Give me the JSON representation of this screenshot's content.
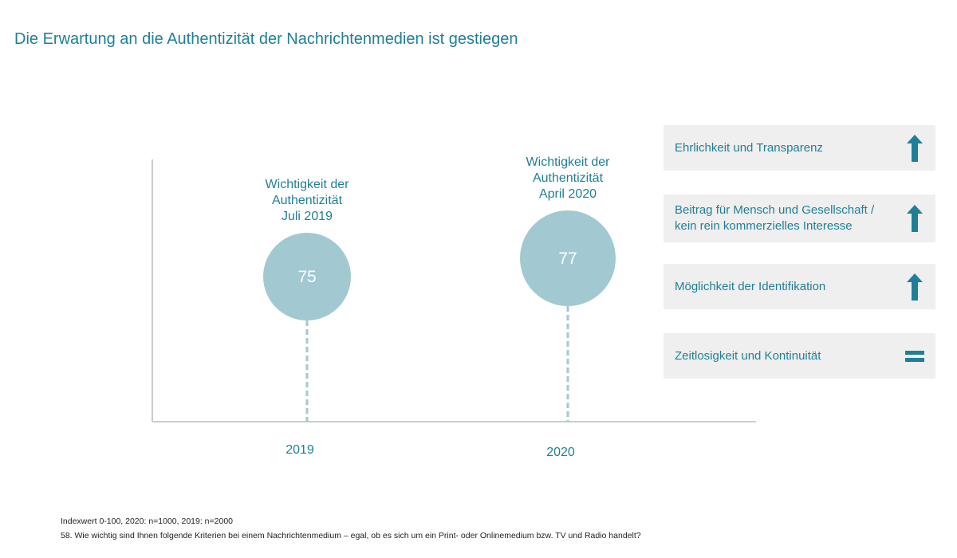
{
  "title": "Die Erwartung an die Authentizität der Nachrichtenmedien ist gestiegen",
  "chart_data": {
    "type": "bubble",
    "points": [
      {
        "year": "2019",
        "value": 75,
        "label_lines": [
          "Wichtigkeit der",
          "Authentizität",
          "Juli 2019"
        ]
      },
      {
        "year": "2020",
        "value": 77,
        "label_lines": [
          "Wichtigkeit der",
          "Authentizität",
          "April 2020"
        ]
      }
    ],
    "categories": [
      "2019",
      "2020"
    ],
    "scale_note": "Indexwert 0-100"
  },
  "criteria": [
    {
      "lines": [
        "Ehrlichkeit und Transparenz"
      ],
      "trend": "up"
    },
    {
      "lines": [
        "Beitrag für Mensch und Gesellschaft /",
        "kein rein kommerzielles Interesse"
      ],
      "trend": "up"
    },
    {
      "lines": [
        "Möglichkeit der Identifikation"
      ],
      "trend": "up"
    },
    {
      "lines": [
        "Zeitlosigkeit und Kontinuität"
      ],
      "trend": "equal"
    }
  ],
  "footnotes": [
    "Indexwert 0-100, 2020: n=1000, 2019: n=2000",
    "58. Wie wichtig sind Ihnen folgende Kriterien bei einem Nachrichtenmedium – egal, ob es sich um ein Print- oder Onlinemedium bzw. TV und Radio handelt?"
  ],
  "colors": {
    "accent": "#1f7f98",
    "bubble": "#a2c9d2",
    "axis": "#cccccc",
    "panel": "#efefef"
  }
}
